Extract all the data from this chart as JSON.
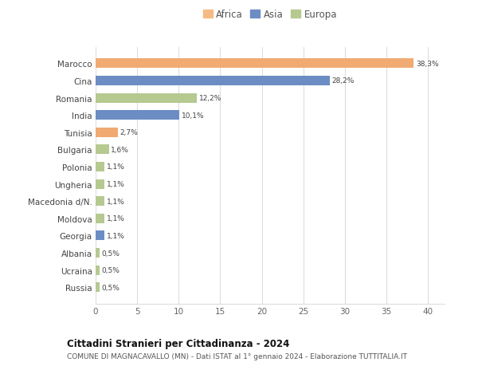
{
  "categories": [
    "Russia",
    "Ucraina",
    "Albania",
    "Georgia",
    "Moldova",
    "Macedonia d/N.",
    "Ungheria",
    "Polonia",
    "Bulgaria",
    "Tunisia",
    "India",
    "Romania",
    "Cina",
    "Marocco"
  ],
  "values": [
    0.5,
    0.5,
    0.5,
    1.1,
    1.1,
    1.1,
    1.1,
    1.1,
    1.6,
    2.7,
    10.1,
    12.2,
    28.2,
    38.3
  ],
  "labels": [
    "0,5%",
    "0,5%",
    "0,5%",
    "1,1%",
    "1,1%",
    "1,1%",
    "1,1%",
    "1,1%",
    "1,6%",
    "2,7%",
    "10,1%",
    "12,2%",
    "28,2%",
    "38,3%"
  ],
  "colors": [
    "#b5c990",
    "#b5c990",
    "#b5c990",
    "#6b8dc4",
    "#b5c990",
    "#b5c990",
    "#b5c990",
    "#b5c990",
    "#b5c990",
    "#f0aa72",
    "#6b8dc4",
    "#b5c990",
    "#6b8dc4",
    "#f0aa72"
  ],
  "legend_labels": [
    "Africa",
    "Asia",
    "Europa"
  ],
  "legend_colors": [
    "#f5bb84",
    "#6b8dc4",
    "#b5c990"
  ],
  "xlim": [
    0,
    42
  ],
  "xticks": [
    0,
    5,
    10,
    15,
    20,
    25,
    30,
    35,
    40
  ],
  "title": "Cittadini Stranieri per Cittadinanza - 2024",
  "subtitle": "COMUNE DI MAGNACAVALLO (MN) - Dati ISTAT al 1° gennaio 2024 - Elaborazione TUTTITALIA.IT",
  "background_color": "#ffffff",
  "bar_height": 0.55,
  "grid_color": "#dddddd"
}
